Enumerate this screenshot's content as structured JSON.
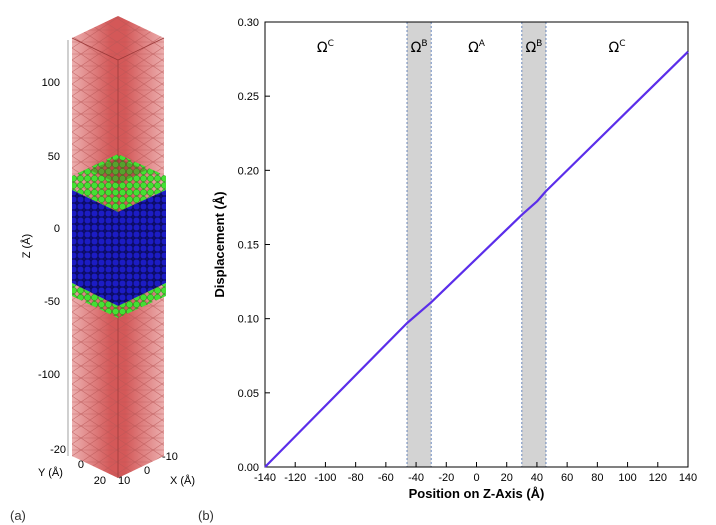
{
  "panel_labels": [
    "(a)",
    "(b)"
  ],
  "colors": {
    "outer_mesh": "#e8a0a0",
    "outer_core": "#c43a3a",
    "interface_atoms": "#33dd22",
    "inner_atoms": "#1414a0",
    "line": "#5b2eea",
    "band": "#d3d3d3",
    "band_edge": "#4a6fb0"
  },
  "panel_a": {
    "z_axis_label": "Z (Å)",
    "z_ticks": [
      "100",
      "50",
      "0",
      "-50",
      "-100"
    ],
    "y_axis_label": "Y (Å)",
    "y_ticks": [
      "-20",
      "0",
      "20"
    ],
    "x_axis_label": "X (Å)",
    "x_ticks": [
      "10",
      "0",
      "-10"
    ]
  },
  "chart_data": {
    "type": "line",
    "title": "",
    "xlabel": "Position on Z-Axis (Å)",
    "ylabel": "Displacement (Å)",
    "xlim": [
      -140,
      140
    ],
    "ylim": [
      0,
      0.3
    ],
    "x_ticks": [
      "-140",
      "-120",
      "-100",
      "-80",
      "-60",
      "-40",
      "-20",
      "0",
      "20",
      "40",
      "60",
      "80",
      "100",
      "120",
      "140"
    ],
    "y_ticks": [
      "0.00",
      "0.05",
      "0.10",
      "0.15",
      "0.20",
      "0.25",
      "0.30"
    ],
    "grid": false,
    "series": [
      {
        "x": [
          -140,
          -46,
          -30,
          30,
          40,
          46,
          140
        ],
        "y": [
          0.0,
          0.097,
          0.111,
          0.17,
          0.179,
          0.186,
          0.28
        ]
      }
    ],
    "shaded_regions": [
      {
        "x": [
          -46,
          -30
        ]
      },
      {
        "x": [
          30,
          46
        ]
      }
    ],
    "region_labels": [
      {
        "text": "Ω",
        "sup": "C",
        "x": -100
      },
      {
        "text": "Ω",
        "sup": "B",
        "x": -38
      },
      {
        "text": "Ω",
        "sup": "A",
        "x": 0
      },
      {
        "text": "Ω",
        "sup": "B",
        "x": 38
      },
      {
        "text": "Ω",
        "sup": "C",
        "x": 93
      }
    ]
  }
}
